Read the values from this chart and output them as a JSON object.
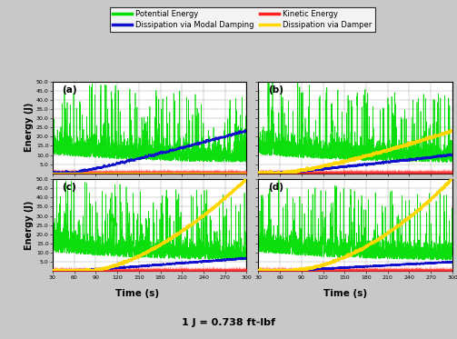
{
  "xlabel": "Time (s)",
  "ylabel": "Energy (J)",
  "xlim": [
    30,
    300
  ],
  "ylim": [
    0,
    50
  ],
  "yticks": [
    5.0,
    10.0,
    15.0,
    20.0,
    25.0,
    30.0,
    35.0,
    40.0,
    45.0,
    50.0
  ],
  "xticks": [
    30,
    60,
    90,
    120,
    150,
    180,
    210,
    240,
    270,
    300
  ],
  "panel_labels": [
    "(a)",
    "(b)",
    "(c)",
    "(d)"
  ],
  "colors": {
    "potential": "#00DD00",
    "kinetic": "#FF2020",
    "modal": "#1010CC",
    "damper": "#FFD700"
  },
  "legend_labels": [
    "Potential Energy",
    "Kinetic Energy",
    "Dissipation via Modal Damping",
    "Dissipation via Damper"
  ],
  "bg_color": "#C8C8C8",
  "plot_bg": "#FFFFFF",
  "bottom_label": "1 J = 0.738 ft-lbf",
  "seed": 42
}
